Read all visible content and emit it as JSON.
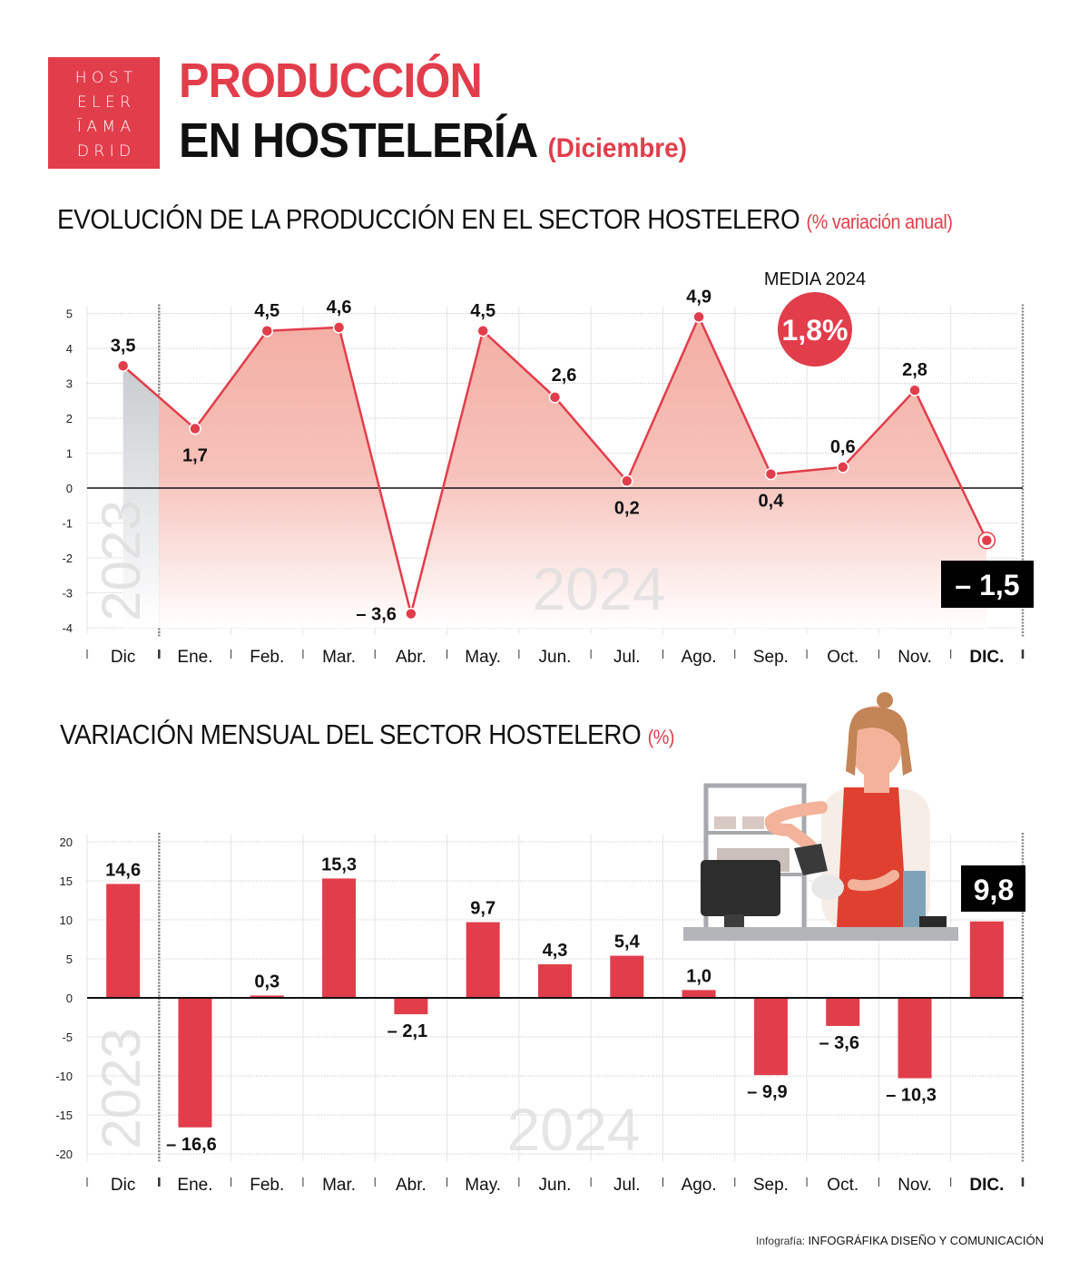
{
  "header": {
    "logo_rows": [
      "H O S T",
      "E L E R",
      "Ī A M A",
      "D R I D"
    ],
    "title_line1": "PRODUCCIÓN",
    "title_line2": "EN HOSTELERÍA",
    "title_period": "(Diciembre)"
  },
  "section1": {
    "title": "EVOLUCIÓN DE LA PRODUCCIÓN EN EL SECTOR HOSTELERO",
    "unit": "(% variación anual)",
    "media_label": "MEDIA 2024",
    "media_value": "1,8%",
    "highlight_value": "– 1,5",
    "year_prev": "2023",
    "year_curr": "2024"
  },
  "section2": {
    "title": "VARIACIÓN MENSUAL DEL SECTOR HOSTELERO",
    "unit": "(%)",
    "highlight_value": "9,8",
    "year_prev": "2023",
    "year_curr": "2024"
  },
  "footer": {
    "prefix": "Infografía:",
    "credit": "INFOGRÁFIKA DISEÑO Y COMUNICACIÓN"
  },
  "colors": {
    "accent": "#e23d4b",
    "dark": "#111111",
    "grid": "#cfcfcf",
    "area_fill": "#f4b3aa",
    "prev_year_fill": "#c9ccd0"
  },
  "chart_data": [
    {
      "type": "line",
      "title": "EVOLUCIÓN DE LA PRODUCCIÓN EN EL SECTOR HOSTELERO",
      "subtitle": "(% variación anual)",
      "categories": [
        "Dic",
        "Ene.",
        "Feb.",
        "Mar.",
        "Abr.",
        "May.",
        "Jun.",
        "Jul.",
        "Ago.",
        "Sep.",
        "Oct.",
        "Nov.",
        "DIC."
      ],
      "values": [
        3.5,
        1.7,
        4.5,
        4.6,
        -3.6,
        4.5,
        2.6,
        0.2,
        4.9,
        0.4,
        0.6,
        2.8,
        -1.5
      ],
      "labels": [
        "3,5",
        "1,7",
        "4,5",
        "4,6",
        "– 3,6",
        "4,5",
        "2,6",
        "0,2",
        "4,9",
        "0,4",
        "0,6",
        "2,8",
        "– 1,5"
      ],
      "yticks": [
        5,
        4,
        3,
        2,
        1,
        0,
        -1,
        -2,
        -3,
        -4
      ],
      "ylim": [
        -4,
        5
      ],
      "grid": true,
      "annotations": [
        "MEDIA 2024: 1,8%",
        "2023",
        "2024"
      ],
      "xlabel": "",
      "ylabel": ""
    },
    {
      "type": "bar",
      "title": "VARIACIÓN MENSUAL DEL SECTOR HOSTELERO",
      "subtitle": "(%)",
      "categories": [
        "Dic",
        "Ene.",
        "Feb.",
        "Mar.",
        "Abr.",
        "May.",
        "Jun.",
        "Jul.",
        "Ago.",
        "Sep.",
        "Oct.",
        "Nov.",
        "DIC."
      ],
      "values": [
        14.6,
        -16.6,
        0.3,
        15.3,
        -2.1,
        9.7,
        4.3,
        5.4,
        1.0,
        -9.9,
        -3.6,
        -10.3,
        9.8
      ],
      "labels": [
        "14,6",
        "– 16,6",
        "0,3",
        "15,3",
        "– 2,1",
        "9,7",
        "4,3",
        "5,4",
        "1,0",
        "– 9,9",
        "– 3,6",
        "– 10,3",
        "9,8"
      ],
      "yticks": [
        20,
        15,
        10,
        5,
        0,
        -5,
        -10,
        -15,
        -20
      ],
      "ylim": [
        -20,
        20
      ],
      "grid": true,
      "annotations": [
        "2023",
        "2024"
      ],
      "xlabel": "",
      "ylabel": ""
    }
  ]
}
